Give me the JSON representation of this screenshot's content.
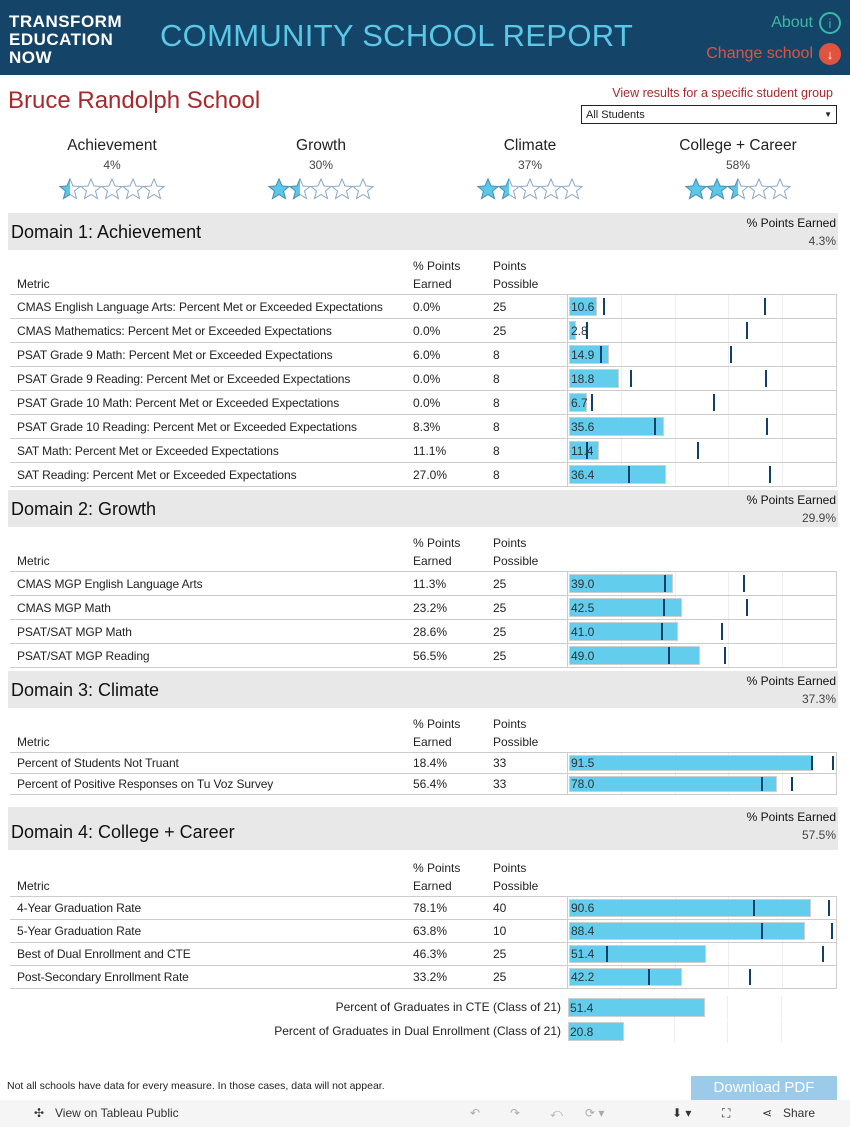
{
  "header": {
    "logo": [
      "TRANSFORM",
      "EDUCATION",
      "NOW"
    ],
    "title": "COMMUNITY SCHOOL REPORT",
    "about": "About",
    "change_school": "Change school"
  },
  "school_name": "Bruce Randolph School",
  "group_filter": {
    "label": "View results for a specific student group",
    "value": "All Students"
  },
  "summary": [
    {
      "name": "Achievement",
      "pct": "4%",
      "stars": 0.5
    },
    {
      "name": "Growth",
      "pct": "30%",
      "stars": 1.5
    },
    {
      "name": "Climate",
      "pct": "37%",
      "stars": 1.5
    },
    {
      "name": "College + Career",
      "pct": "58%",
      "stars": 2.5
    }
  ],
  "columns": {
    "metric": "Metric",
    "earned1": "% Points",
    "earned2": "Earned",
    "possible1": "Points",
    "possible2": "Possible"
  },
  "points_label": "% Points Earned",
  "domains": [
    {
      "title": "Domain 1:  Achievement",
      "points_earned": "4.3%",
      "rows": [
        {
          "metric": "CMAS English Language Arts: Percent Met or Exceeded Expectations",
          "earned": "0.0%",
          "possible": "25",
          "value": 10.6,
          "markers": [
            13.1,
            73.4
          ]
        },
        {
          "metric": "CMAS Mathematics: Percent Met or Exceeded Expectations",
          "earned": "0.0%",
          "possible": "25",
          "value": 2.8,
          "markers": [
            6.7,
            66.7
          ]
        },
        {
          "metric": "PSAT Grade 9 Math: Percent Met or Exceeded Expectations",
          "earned": "6.0%",
          "possible": "8",
          "value": 14.9,
          "markers": [
            12,
            60.7
          ]
        },
        {
          "metric": "PSAT Grade 9 Reading: Percent Met or Exceeded Expectations",
          "earned": "0.0%",
          "possible": "8",
          "value": 18.8,
          "markers": [
            23.2,
            73.8
          ]
        },
        {
          "metric": "PSAT Grade 10 Math: Percent Met or Exceeded Expectations",
          "earned": "0.0%",
          "possible": "8",
          "value": 6.7,
          "markers": [
            8.6,
            54.3
          ]
        },
        {
          "metric": "PSAT Grade 10 Reading: Percent Met or Exceeded Expectations",
          "earned": "8.3%",
          "possible": "8",
          "value": 35.6,
          "markers": [
            32.2,
            74.2
          ]
        },
        {
          "metric": "SAT Math: Percent Met or Exceeded Expectations",
          "earned": "11.1%",
          "possible": "8",
          "value": 11.4,
          "markers": [
            6.7,
            48.3
          ]
        },
        {
          "metric": "SAT Reading: Percent Met or Exceeded Expectations",
          "earned": "27.0%",
          "possible": "8",
          "value": 36.4,
          "markers": [
            22.5,
            75.3
          ]
        }
      ]
    },
    {
      "title": "Domain 2:  Growth",
      "points_earned": "29.9%",
      "rows": [
        {
          "metric": "CMAS MGP English Language Arts",
          "earned": "11.3%",
          "possible": "25",
          "value": 39.0,
          "markers": [
            36,
            65.5
          ]
        },
        {
          "metric": "CMAS MGP Math",
          "earned": "23.2%",
          "possible": "25",
          "value": 42.5,
          "markers": [
            35.6,
            66.7
          ]
        },
        {
          "metric": "PSAT/SAT MGP Math",
          "earned": "28.6%",
          "possible": "25",
          "value": 41.0,
          "markers": [
            34.8,
            57.3
          ]
        },
        {
          "metric": "PSAT/SAT MGP Reading",
          "earned": "56.5%",
          "possible": "25",
          "value": 49.0,
          "markers": [
            37.5,
            58.4
          ]
        }
      ]
    },
    {
      "title": "Domain 3:  Climate",
      "points_earned": "37.3%",
      "rows": [
        {
          "metric": "Percent of Students Not Truant",
          "earned": "18.4%",
          "possible": "33",
          "value": 91.5,
          "markers": [
            91,
            98.9
          ]
        },
        {
          "metric": "Percent of Positive Responses on Tu Voz Survey",
          "earned": "56.4%",
          "possible": "33",
          "value": 78.0,
          "markers": [
            72.3,
            83.5
          ]
        }
      ]
    },
    {
      "title": "Domain 4:  College + Career",
      "points_earned": "57.5%",
      "rows": [
        {
          "metric": "4-Year Graduation Rate",
          "earned": "78.1%",
          "possible": "40",
          "value": 90.6,
          "markers": [
            69.3,
            97.4
          ]
        },
        {
          "metric": "5-Year Graduation Rate",
          "earned": "63.8%",
          "possible": "10",
          "value": 88.4,
          "markers": [
            72.3,
            98.5
          ]
        },
        {
          "metric": "Best of Dual Enrollment and CTE",
          "earned": "46.3%",
          "possible": "25",
          "value": 51.4,
          "markers": [
            14.2,
            95.1
          ]
        },
        {
          "metric": "Post-Secondary Enrollment Rate",
          "earned": "33.2%",
          "possible": "25",
          "value": 42.2,
          "markers": [
            30,
            67.8
          ]
        }
      ]
    }
  ],
  "extra_rows": [
    {
      "metric": "Percent of Graduates in CTE (Class of 21)",
      "value": 51.4
    },
    {
      "metric": "Percent of Graduates in Dual Enrollment (Class of 21)",
      "value": 20.8
    }
  ],
  "footer": {
    "note": "Not all schools have data for every measure.  In those cases, data will not appear.",
    "download": "Download PDF",
    "tableau": "View on Tableau Public",
    "share": "Share"
  },
  "colors": {
    "header": "#154469",
    "bar": "#62cdec",
    "marker": "#13406a",
    "accent": "#a8282c"
  }
}
